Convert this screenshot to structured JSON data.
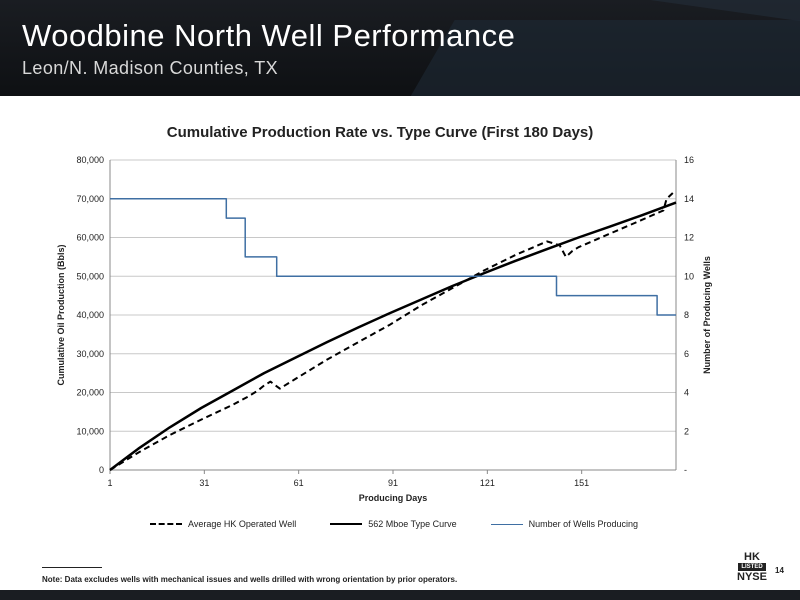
{
  "slide": {
    "title": "Woodbine North Well Performance",
    "subtitle": "Leon/N. Madison Counties, TX",
    "page_number": "14",
    "footnote": "Note:  Data excludes wells with mechanical issues and wells drilled with wrong orientation by prior operators.",
    "logo": {
      "line1": "HK",
      "line2": "LISTED",
      "line3": "NYSE"
    }
  },
  "chart_data": {
    "type": "line",
    "title": "Cumulative Production Rate vs. Type Curve (First 180 Days)",
    "xlabel": "Producing Days",
    "ylabel": "Cumulative Oil Production (Bbls)",
    "y2label": "Number of Producing Wells",
    "xlim": [
      1,
      181
    ],
    "ylim": [
      0,
      80000
    ],
    "y2lim": [
      0,
      16
    ],
    "x_ticks": [
      "1",
      "31",
      "61",
      "91",
      "121",
      "151"
    ],
    "y_ticks": [
      "0",
      "10,000",
      "20,000",
      "30,000",
      "40,000",
      "50,000",
      "60,000",
      "70,000",
      "80,000"
    ],
    "y2_ticks": [
      "-",
      "2",
      "4",
      "6",
      "8",
      "10",
      "12",
      "14",
      "16"
    ],
    "legend_position": "bottom",
    "series": [
      {
        "name": "Average HK Operated Well",
        "style": "dashed",
        "color": "#000000",
        "axis": "left",
        "x": [
          1,
          10,
          20,
          30,
          40,
          45,
          48,
          50,
          52,
          55,
          60,
          70,
          80,
          90,
          100,
          110,
          120,
          130,
          140,
          144,
          146,
          148,
          150,
          160,
          170,
          177,
          178,
          180,
          181
        ],
        "y": [
          0,
          4500,
          9000,
          13000,
          16800,
          19000,
          20500,
          21800,
          22800,
          21000,
          23500,
          28500,
          33000,
          37500,
          42500,
          47000,
          51500,
          55500,
          59000,
          58000,
          55000,
          56500,
          57500,
          61000,
          64500,
          67000,
          70000,
          71500,
          72000
        ]
      },
      {
        "name": "562 Mboe Type Curve",
        "style": "solid",
        "color": "#000000",
        "axis": "left",
        "x": [
          1,
          10,
          20,
          30,
          40,
          50,
          60,
          70,
          80,
          90,
          100,
          110,
          120,
          130,
          140,
          150,
          160,
          170,
          181
        ],
        "y": [
          0,
          5500,
          11000,
          16000,
          20500,
          25000,
          29000,
          33000,
          36800,
          40500,
          44000,
          47500,
          50800,
          54000,
          57000,
          60000,
          62800,
          65700,
          69000
        ]
      },
      {
        "name": "Number of Wells Producing",
        "style": "step",
        "color": "#3f6fa3",
        "axis": "right",
        "x": [
          1,
          38,
          38,
          44,
          44,
          54,
          54,
          143,
          143,
          175,
          175,
          181
        ],
        "y": [
          14,
          14,
          13,
          13,
          11,
          11,
          10,
          10,
          9,
          9,
          8,
          8
        ]
      }
    ]
  }
}
